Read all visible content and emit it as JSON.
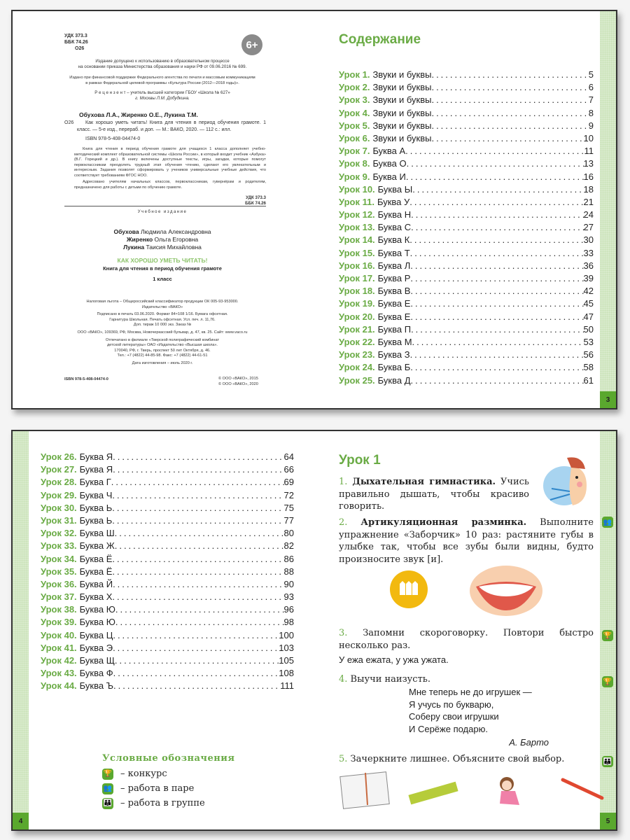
{
  "imprint": {
    "udk": "УДК  373.3",
    "bbk": "ББК  74.26",
    "code": "О26",
    "age": "6+",
    "approval": [
      "Издание допущено к использованию в образовательном процессе",
      "на основании приказа Министерства образования и науки РФ от 09.06.2016 № 699."
    ],
    "support": [
      "Издано при финансовой поддержке Федерального агентства по печати и массовым коммуникациям",
      "в рамках Федеральной целевой программы «Культура России (2012—2018 годы)»."
    ],
    "reviewer": [
      "Р е ц е н з е н т – учитель высшей категории ГБОУ «Школа № 627»",
      "г. Москвы Л.М. Добудкина."
    ],
    "authors_short": "Обухова Л.А., Жиренко О.Е., Лукина Т.М.",
    "biblio": "Как хорошо уметь читать! Книга для чтения в период обучения грамоте. 1 класс. — 5-е изд., перераб. и доп. — М.: ВАКО, 2020. — 112 с.: илл.",
    "isbn": "ISBN 978-5-408-04474-0",
    "annotation": "Книга для чтения в период обучения грамоте для учащихся 1 класса дополняет учебно-методический комплект образовательной системы «Школа России», в который входит учебник «Азбука» (В.Г. Горецкий и др.). В книгу включены доступные тексты, игры, загадки, которые помогут первоклассникам преодолеть трудный этап обучения чтению, сделают его увлекательным и интересным. Задания позволят сформировать у учеников универсальные учебные действия, что соответствует требованиям ФГОС НОО.",
    "audience": "Адресовано учителям начальных классов, первоклассникам, гувернёрам и родителям, предназначено для работы с детьми по обучению грамоте.",
    "udk2": "УДК 373.3",
    "bbk2": "ББК 74.26",
    "edition_type": "Учебное издание",
    "authors": [
      {
        "last": "Обухова",
        "rest": " Людмила Александровна"
      },
      {
        "last": "Жиренко",
        "rest": " Ольга Егоровна"
      },
      {
        "last": "Лукина",
        "rest": " Таисия Михайловна"
      }
    ],
    "title": "КАК ХОРОШО УМЕТЬ ЧИТАТЬ!",
    "subtitle": "Книга для чтения в период обучения грамоте",
    "grade": "1 класс",
    "tax": [
      "Налоговая льгота – Общероссийский классификатор продукции ОК 005-93-953000.",
      "Издательство «ВАКО»"
    ],
    "print": [
      "Подписано в печать 03.06.2020. Формат 84×108 1/16. Бумага офсетная.",
      "Гарнитура Школьная. Печать офсетная. Усл. печ. л. 11,76.",
      "Доп. тираж 10 000 экз. Заказ №"
    ],
    "publisher": "ООО «ВАКО», 109369, РФ, Москва, Новочеркасский бульвар, д. 47, кв. 25. Сайт: www.vaco.ru",
    "printer": [
      "Отпечатано в филиале «Тверской полиграфический комбинат",
      "детской литературы» ОАО «Издательство «Высшая школа».",
      "170040, РФ, г. Тверь, проспект 50 лет Октября, д. 46.",
      "Тел.: +7 (4822) 44-85-98. Факс: +7 (4822) 44-61-51"
    ],
    "date": "Дата изготовления – июль 2020 г.",
    "isbn_bottom": "ISBN 978-5-408-04474-0",
    "copyright": [
      "© ООО «ВАКО», 2015",
      "© ООО «ВАКО», 2020"
    ]
  },
  "contents": {
    "heading": "Содержание",
    "page": "3",
    "items": [
      {
        "l": "Урок 1.",
        "t": "Звуки и буквы",
        "p": "5"
      },
      {
        "l": "Урок 2.",
        "t": "Звуки и буквы",
        "p": "6"
      },
      {
        "l": "Урок 3.",
        "t": "Звуки и буквы",
        "p": "7"
      },
      {
        "l": "Урок 4.",
        "t": "Звуки и буквы",
        "p": "8"
      },
      {
        "l": "Урок 5.",
        "t": "Звуки и буквы",
        "p": "9"
      },
      {
        "l": "Урок 6.",
        "t": "Звуки и буквы",
        "p": "10"
      },
      {
        "l": "Урок 7.",
        "t": "Буква А",
        "p": "11"
      },
      {
        "l": "Урок 8.",
        "t": "Буква О",
        "p": "13"
      },
      {
        "l": "Урок 9.",
        "t": "Буква И",
        "p": "16"
      },
      {
        "l": "Урок 10.",
        "t": "Буква Ы",
        "p": "18"
      },
      {
        "l": "Урок 11.",
        "t": "Буква У",
        "p": "21"
      },
      {
        "l": "Урок 12.",
        "t": "Буква Н",
        "p": "24"
      },
      {
        "l": "Урок 13.",
        "t": "Буква С",
        "p": "27"
      },
      {
        "l": "Урок 14.",
        "t": "Буква К",
        "p": "30"
      },
      {
        "l": "Урок 15.",
        "t": "Буква Т",
        "p": "33"
      },
      {
        "l": "Урок 16.",
        "t": "Буква Л",
        "p": "36"
      },
      {
        "l": "Урок 17.",
        "t": "Буква Р",
        "p": "39"
      },
      {
        "l": "Урок 18.",
        "t": "Буква В",
        "p": "42"
      },
      {
        "l": "Урок 19.",
        "t": "Буква Е",
        "p": "45"
      },
      {
        "l": "Урок 20.",
        "t": "Буква Е",
        "p": "47"
      },
      {
        "l": "Урок 21.",
        "t": "Буква П",
        "p": "50"
      },
      {
        "l": "Урок 22.",
        "t": "Буква М",
        "p": "53"
      },
      {
        "l": "Урок 23.",
        "t": "Буква З",
        "p": "56"
      },
      {
        "l": "Урок 24.",
        "t": "Буква Б",
        "p": "58"
      },
      {
        "l": "Урок 25.",
        "t": "Буква Д",
        "p": "61"
      }
    ]
  },
  "contents2": {
    "page": "4",
    "items": [
      {
        "l": "Урок 26.",
        "t": "Буква Я",
        "p": "64"
      },
      {
        "l": "Урок 27.",
        "t": "Буква Я",
        "p": "66"
      },
      {
        "l": "Урок 28.",
        "t": "Буква Г",
        "p": "69"
      },
      {
        "l": "Урок 29.",
        "t": "Буква Ч",
        "p": "72"
      },
      {
        "l": "Урок 30.",
        "t": "Буква Ь",
        "p": "75"
      },
      {
        "l": "Урок 31.",
        "t": "Буква Ь",
        "p": "77"
      },
      {
        "l": "Урок 32.",
        "t": "Буква Ш",
        "p": "80"
      },
      {
        "l": "Урок 33.",
        "t": "Буква Ж",
        "p": "82"
      },
      {
        "l": "Урок 34.",
        "t": "Буква Ё",
        "p": "86"
      },
      {
        "l": "Урок 35.",
        "t": "Буква Ё",
        "p": "88"
      },
      {
        "l": "Урок 36.",
        "t": "Буква Й",
        "p": "90"
      },
      {
        "l": "Урок 37.",
        "t": "Буква Х",
        "p": "93"
      },
      {
        "l": "Урок 38.",
        "t": "Буква Ю",
        "p": "96"
      },
      {
        "l": "Урок 39.",
        "t": "Буква Ю",
        "p": "98"
      },
      {
        "l": "Урок 40.",
        "t": "Буква Ц",
        "p": "100"
      },
      {
        "l": "Урок 41.",
        "t": "Буква Э",
        "p": "103"
      },
      {
        "l": "Урок 42.",
        "t": "Буква Щ",
        "p": "105"
      },
      {
        "l": "Урок 43.",
        "t": "Буква Ф",
        "p": "108"
      },
      {
        "l": "Урок 44.",
        "t": "Буква Ъ",
        "p": "111"
      }
    ],
    "legend": {
      "title": "Условные обозначения",
      "items": [
        {
          "icon": "trophy-icon",
          "text": "– конкурс"
        },
        {
          "icon": "pair-icon",
          "text": "– работа в паре"
        },
        {
          "icon": "group-icon",
          "text": "– работа в группе"
        }
      ]
    }
  },
  "lesson": {
    "page": "5",
    "title": "Урок 1",
    "t1": {
      "n": "1.",
      "b": "Дыхательная гимнастика.",
      "r": " Учись правильно дышать, чтобы красиво говорить."
    },
    "t2": {
      "n": "2.",
      "b": "Артикуляционная разминка.",
      "r": " Выполните упражнение «Заборчик» 10 раз: растяните губы в улыбке так, чтобы все зубы были видны, будто произносите звук [и]."
    },
    "t3": {
      "n": "3.",
      "r": "Запомни скороговорку. Повтори быстро несколько раз."
    },
    "tongue_twister": "У ежа ежата, у ужа ужата.",
    "t4": {
      "n": "4.",
      "r": "Выучи наизусть."
    },
    "poem": [
      "Мне теперь не до игрушек —",
      "Я учусь по букварю,",
      "Соберу свои игрушки",
      "И Серёже подарю."
    ],
    "poem_author": "А. Барто",
    "t5": {
      "n": "5.",
      "r": "Зачеркните лишнее. Объясните свой выбор."
    },
    "colors": {
      "green": "#6aab45",
      "strip": "#d9ebcc",
      "fence": "#f2b90f"
    }
  }
}
